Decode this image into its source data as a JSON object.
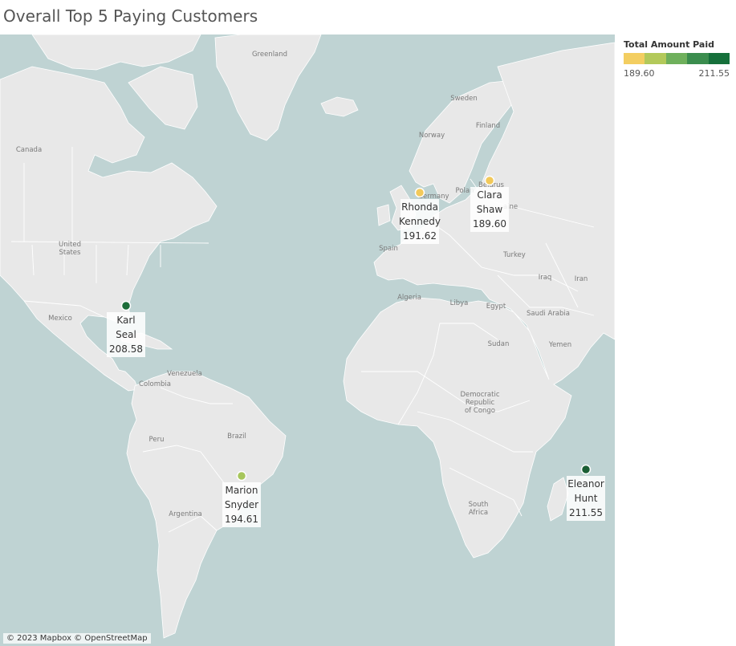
{
  "title": "Overall Top 5 Paying Customers",
  "legend": {
    "title": "Total Amount Paid",
    "min_label": "189.60",
    "max_label": "211.55",
    "colors": [
      "#f3ce61",
      "#b3c95a",
      "#6fb05c",
      "#3b8d4e",
      "#16703b"
    ]
  },
  "attribution": "© 2023 Mapbox © OpenStreetMap",
  "colors": {
    "ocean": "#bfd3d3",
    "land": "#e8e8e8",
    "border": "#ffffff"
  },
  "place_labels": {
    "greenland": "Greenland",
    "canada": "Canada",
    "united_states": "United\nStates",
    "mexico": "Mexico",
    "venezuela": "Venezuela",
    "colombia": "Colombia",
    "peru": "Peru",
    "brazil": "Brazil",
    "argentina": "Argentina",
    "sweden": "Sweden",
    "norway": "Norway",
    "finland": "Finland",
    "poland": "Polan",
    "germany": "Germany",
    "ukraine": "aine",
    "belarus": "Belarus",
    "spain": "Spain",
    "turkey": "Turkey",
    "iraq": "Iraq",
    "iran": "Iran",
    "algeria": "Algeria",
    "libya": "Libya",
    "egypt": "Egypt",
    "saudi_arabia": "Saudi Arabia",
    "sudan": "Sudan",
    "yemen": "Yemen",
    "drc": "Democratic\nRepublic\nof Congo",
    "south_africa": "South\nAfrica"
  },
  "chart_data": {
    "type": "scatter",
    "title": "Overall Top 5 Paying Customers",
    "legend_placement": "top-right",
    "color_scale": {
      "label": "Total Amount Paid",
      "min": 189.6,
      "max": 211.55
    },
    "points": [
      {
        "name": "Karl\nSeal",
        "value": "208.58",
        "color": "#1d6e3a"
      },
      {
        "name": "Rhonda\nKennedy",
        "value": "191.62",
        "color": "#f2c95a"
      },
      {
        "name": "Clara\nShaw",
        "value": "189.60",
        "color": "#f2c95a"
      },
      {
        "name": "Marion\nSnyder",
        "value": "194.61",
        "color": "#a7c65c"
      },
      {
        "name": "Eleanor\nHunt",
        "value": "211.55",
        "color": "#1a5e34"
      }
    ]
  }
}
